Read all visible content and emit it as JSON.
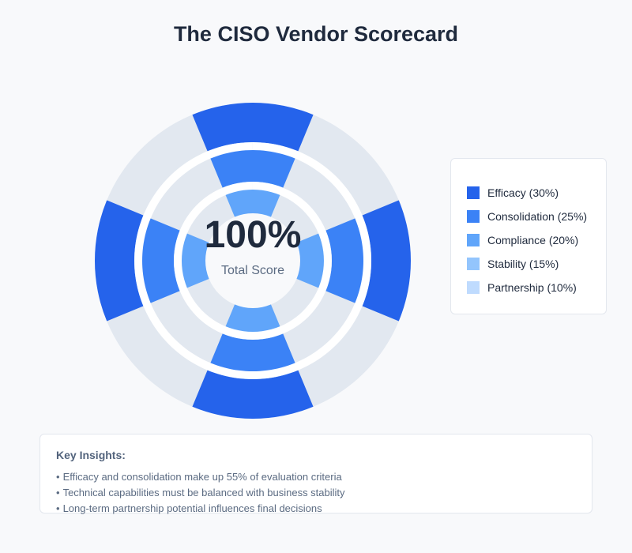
{
  "title": "The CISO Vendor Scorecard",
  "center": {
    "value": "100%",
    "label": "Total Score"
  },
  "legend": [
    {
      "label": "Efficacy (30%)",
      "color": "#2563eb"
    },
    {
      "label": "Consolidation (25%)",
      "color": "#3b82f6"
    },
    {
      "label": "Compliance (20%)",
      "color": "#60a5fa"
    },
    {
      "label": "Stability (15%)",
      "color": "#93c5fd"
    },
    {
      "label": "Partnership (10%)",
      "color": "#bfdbfe"
    }
  ],
  "insights": {
    "title": "Key Insights:",
    "items": [
      "Efficacy and consolidation make up 55% of evaluation criteria",
      "Technical capabilities must be balanced with business stability",
      "Long-term partnership potential influences final decisions"
    ]
  },
  "chart_data": {
    "type": "radial",
    "categories": [
      "Efficacy",
      "Consolidation",
      "Compliance",
      "Stability",
      "Partnership"
    ],
    "values": [
      30,
      25,
      20,
      15,
      10
    ],
    "unit": "%",
    "total": 100,
    "track_color": "#e2e8f0",
    "ring_colors": [
      "#2563eb",
      "#3b82f6",
      "#60a5fa"
    ]
  }
}
